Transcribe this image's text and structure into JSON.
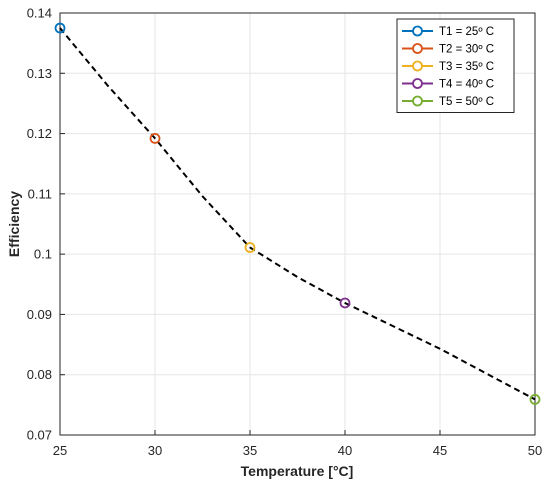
{
  "chart_data": {
    "type": "line",
    "title": "",
    "xlabel": "Temperature [°C]",
    "ylabel": "Efficiency",
    "xlim": [
      25,
      50
    ],
    "ylim": [
      0.07,
      0.14
    ],
    "x_ticks": [
      "25",
      "30",
      "35",
      "40",
      "45",
      "50"
    ],
    "y_ticks": [
      "0.07",
      "0.08",
      "0.09",
      "0.1",
      "0.11",
      "0.12",
      "0.13",
      "0.14"
    ],
    "grid": true,
    "legend_position": "top-right",
    "curve": {
      "style": "dashed",
      "color": "#000000",
      "x": [
        25,
        27.5,
        30,
        32.5,
        35,
        37.5,
        40,
        42.5,
        45,
        47.5,
        50
      ],
      "y": [
        0.1375,
        0.128,
        0.1192,
        0.1096,
        0.1011,
        0.0962,
        0.0919,
        0.0881,
        0.0843,
        0.0801,
        0.0759
      ]
    },
    "series": [
      {
        "name": "T1 = 25º C",
        "x": [
          25
        ],
        "y": [
          0.1375
        ],
        "color": "#0072BD",
        "marker": "circle"
      },
      {
        "name": "T2 = 30º C",
        "x": [
          30
        ],
        "y": [
          0.1192
        ],
        "color": "#D95319",
        "marker": "circle"
      },
      {
        "name": "T3 = 35º C",
        "x": [
          35
        ],
        "y": [
          0.1011
        ],
        "color": "#EDB120",
        "marker": "circle"
      },
      {
        "name": "T4 = 40º C",
        "x": [
          40
        ],
        "y": [
          0.0919
        ],
        "color": "#7E2F8E",
        "marker": "circle"
      },
      {
        "name": "T5 = 50º C",
        "x": [
          50
        ],
        "y": [
          0.0759
        ],
        "color": "#77AC30",
        "marker": "circle"
      }
    ]
  }
}
